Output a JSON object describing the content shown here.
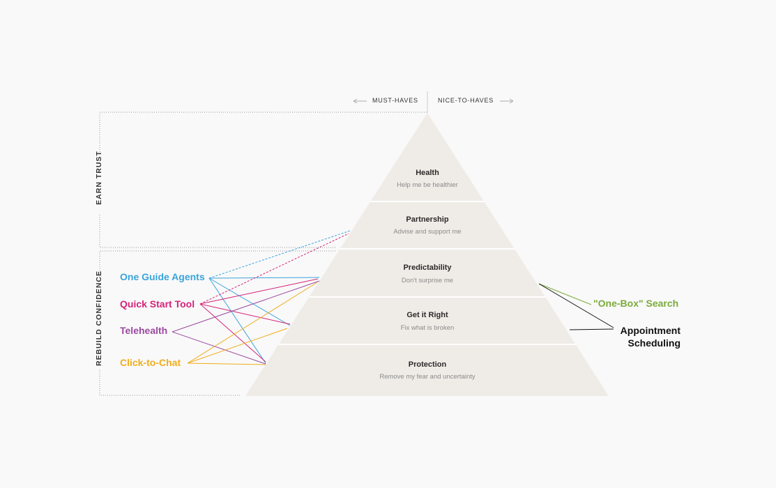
{
  "axis": {
    "left": "MUST-HAVES",
    "right": "NICE-TO-HAVES"
  },
  "sections": {
    "top": "EARN TRUST",
    "bottom": "REBUILD CONFIDENCE"
  },
  "levels": [
    {
      "title": "Health",
      "subtitle": "Help me be healthier"
    },
    {
      "title": "Partnership",
      "subtitle": "Advise and support me"
    },
    {
      "title": "Predictability",
      "subtitle": "Don't surprise me"
    },
    {
      "title": "Get it Right",
      "subtitle": "Fix what is broken"
    },
    {
      "title": "Protection",
      "subtitle": "Remove my fear and uncertainty"
    }
  ],
  "features_left": [
    {
      "label": "One Guide Agents",
      "color": "#3aa3dc"
    },
    {
      "label": "Quick Start Tool",
      "color": "#d4237a"
    },
    {
      "label": "Telehealth",
      "color": "#9b4aa1"
    },
    {
      "label": "Click-to-Chat",
      "color": "#f0ad1c"
    }
  ],
  "features_right": [
    {
      "label": "\"One-Box\" Search",
      "color": "#7aab3a"
    },
    {
      "label": "Appointment Scheduling",
      "line1": "Appointment",
      "line2": "Scheduling",
      "color": "#111111"
    }
  ],
  "colors": {
    "pyramid": "#efece7",
    "band_gap": "#ffffff",
    "guide": "#999999"
  }
}
